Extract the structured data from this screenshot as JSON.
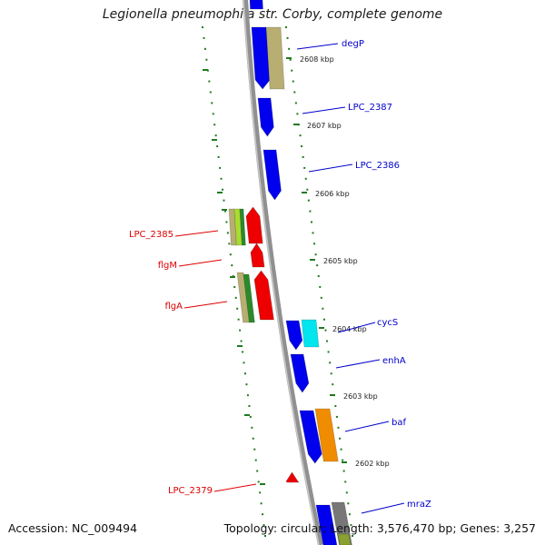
{
  "title": "Legionella pneumophila str. Corby, complete genome",
  "footer": {
    "accession": "Accession: NC_009494",
    "summary": "Topology: circular; Length: 3,576,470 bp; Genes: 3,257"
  },
  "colors": {
    "backbone": "#8a8a8a",
    "tick": "#1f7a1f",
    "reverse_label": "#dd0000",
    "forward_label": "#0000cc",
    "blue_feature": "#0000ee",
    "red_feature": "#ee0000",
    "tan_feature": "#b8ae72",
    "cyan_feature": "#00e5ee",
    "orange_feature": "#f08c00",
    "grey_feature": "#777777",
    "olive_feature": "#8aa030",
    "lime_feature": "#a8dc30",
    "green_feature": "#2a8a2a"
  },
  "ticks": [
    {
      "label": "2608 kbp"
    },
    {
      "label": "2607 kbp"
    },
    {
      "label": "2606 kbp"
    },
    {
      "label": "2605 kbp"
    },
    {
      "label": "2604 kbp"
    },
    {
      "label": "2603 kbp"
    },
    {
      "label": "2602 kbp"
    }
  ],
  "genes_forward": [
    {
      "label": "degP"
    },
    {
      "label": "LPC_2387"
    },
    {
      "label": "LPC_2386"
    },
    {
      "label": "cycS"
    },
    {
      "label": "enhA"
    },
    {
      "label": "baf"
    },
    {
      "label": "mraZ"
    }
  ],
  "genes_reverse": [
    {
      "label": "LPC_2385"
    },
    {
      "label": "flgM"
    },
    {
      "label": "flgA"
    },
    {
      "label": "LPC_2379"
    }
  ]
}
